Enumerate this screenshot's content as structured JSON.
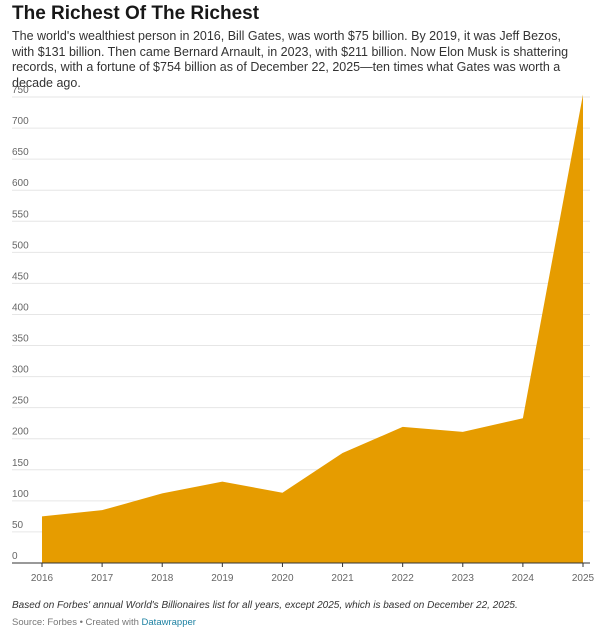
{
  "header": {
    "title": "The Richest Of The Richest",
    "subtitle": "The world's wealthiest person in 2016, Bill Gates, was worth $75 billion. By 2019, it was Jeff Bezos, with $131 billion. Then came Bernard Arnault, in 2023, with $211 billion. Now Elon Musk is shattering records, with a fortune of $754 billion as of December 22, 2025—ten times what Gates was worth a decade ago."
  },
  "footer": {
    "notes": "Based on Forbes' annual World's Billionaires list for all years, except 2025, which is based on December 22, 2025.",
    "source_label": "Source: Forbes • Created with ",
    "tool_link": "Datawrapper"
  },
  "colors": {
    "area": "#e69c00",
    "grid": "#e6e6e6",
    "axis": "#333333",
    "tick_text": "#666666"
  },
  "chart_data": {
    "type": "area",
    "title": "The Richest Of The Richest",
    "xlabel": "",
    "ylabel": "",
    "x": [
      "2016",
      "2017",
      "2018",
      "2019",
      "2020",
      "2021",
      "2022",
      "2023",
      "2024",
      "2025"
    ],
    "series": [
      {
        "values": [
          75,
          85,
          112,
          131,
          113,
          177,
          219,
          211,
          233,
          754
        ]
      }
    ],
    "y_ticks": [
      0,
      50,
      100,
      150,
      200,
      250,
      300,
      350,
      400,
      450,
      500,
      550,
      600,
      650,
      700,
      750
    ],
    "ylim": [
      0,
      754
    ],
    "grid": true,
    "legend": "none"
  }
}
